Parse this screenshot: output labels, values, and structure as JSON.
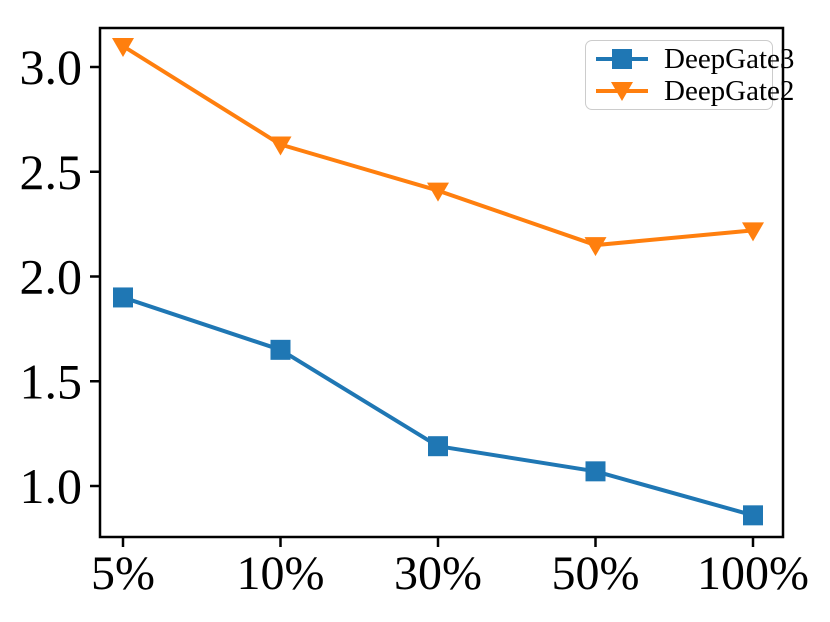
{
  "chart_data": {
    "type": "line",
    "title": "",
    "xlabel": "",
    "ylabel": "",
    "categories": [
      "5%",
      "10%",
      "30%",
      "50%",
      "100%"
    ],
    "series": [
      {
        "name": "DeepGate3",
        "color": "#1f77b4",
        "marker": "square",
        "values": [
          1.9,
          1.65,
          1.19,
          1.07,
          0.86
        ]
      },
      {
        "name": "DeepGate2",
        "color": "#ff7f0e",
        "marker": "triangle-down",
        "values": [
          3.1,
          2.63,
          2.41,
          2.15,
          2.22
        ]
      }
    ],
    "yticks": [
      3.0,
      2.5,
      2.0,
      1.5,
      1.0
    ],
    "ytick_labels": [
      "3.0",
      "2.5",
      "2.0",
      "1.5",
      "1.0"
    ],
    "ylim": [
      0.76,
      3.19
    ],
    "grid": false,
    "legend_position": "upper right",
    "frame_color": "#000000"
  }
}
